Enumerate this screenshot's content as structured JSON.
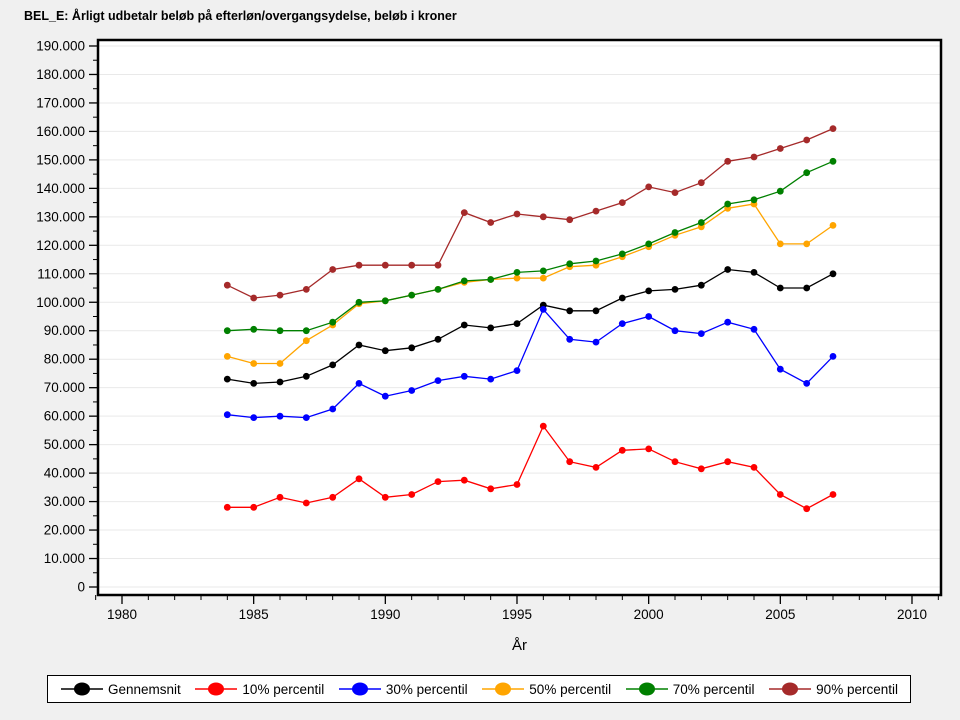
{
  "title": "BEL_E: Årligt udbetalr beløb på efterløn/overgangsydelse, beløb i kroner",
  "chart_data": {
    "type": "line",
    "x": [
      1984,
      1985,
      1986,
      1987,
      1988,
      1989,
      1990,
      1991,
      1992,
      1993,
      1994,
      1995,
      1996,
      1997,
      1998,
      1999,
      2000,
      2001,
      2002,
      2003,
      2004,
      2005,
      2006,
      2007
    ],
    "series": [
      {
        "name": "Gennemsnit",
        "color": "#000000",
        "values": [
          73000,
          71500,
          72000,
          74000,
          78000,
          85000,
          83000,
          84000,
          87000,
          92000,
          91000,
          92500,
          99000,
          97000,
          97000,
          101500,
          104000,
          104500,
          106000,
          111500,
          110500,
          105000,
          105000,
          110000
        ]
      },
      {
        "name": "10% percentil",
        "color": "#FF0000",
        "values": [
          28000,
          28000,
          31500,
          29500,
          31500,
          38000,
          31500,
          32500,
          37000,
          37500,
          34500,
          36000,
          56500,
          44000,
          42000,
          48000,
          48500,
          44000,
          41500,
          44000,
          42000,
          32500,
          27500,
          32500
        ]
      },
      {
        "name": "30% percentil",
        "color": "#0000FF",
        "values": [
          60500,
          59500,
          60000,
          59500,
          62500,
          71500,
          67000,
          69000,
          72500,
          74000,
          73000,
          76000,
          97500,
          87000,
          86000,
          92500,
          95000,
          90000,
          89000,
          93000,
          90500,
          76500,
          71500,
          81000
        ]
      },
      {
        "name": "50% percentil",
        "color": "#FFA500",
        "values": [
          81000,
          78500,
          78500,
          86500,
          92000,
          99500,
          100500,
          102500,
          104500,
          107000,
          108000,
          108500,
          108500,
          112500,
          113000,
          116000,
          119500,
          123500,
          126500,
          133000,
          134500,
          120500,
          120500,
          127000
        ]
      },
      {
        "name": "70% percentil",
        "color": "#008000",
        "values": [
          90000,
          90500,
          90000,
          90000,
          93000,
          100000,
          100500,
          102500,
          104500,
          107500,
          108000,
          110500,
          111000,
          113500,
          114500,
          117000,
          120500,
          124500,
          128000,
          134500,
          136000,
          139000,
          145500,
          149500
        ]
      },
      {
        "name": "90% percentil",
        "color": "#A52A2A",
        "values": [
          106000,
          101500,
          102500,
          104500,
          111500,
          113000,
          113000,
          113000,
          113000,
          131500,
          128000,
          131000,
          130000,
          129000,
          132000,
          135000,
          140500,
          138500,
          142000,
          149500,
          151000,
          154000,
          157000,
          161000
        ]
      }
    ],
    "xlabel": "År",
    "ylabel": "",
    "x_axis": {
      "ticks": [
        1980,
        1985,
        1990,
        1995,
        2000,
        2005,
        2010
      ],
      "minor_step": 1,
      "minor_range": [
        1979,
        2011
      ]
    },
    "y_axis": {
      "ticks": [
        0,
        10000,
        20000,
        30000,
        40000,
        50000,
        60000,
        70000,
        80000,
        90000,
        100000,
        110000,
        120000,
        130000,
        140000,
        150000,
        160000,
        170000,
        180000,
        190000
      ],
      "minor_step": 5000,
      "tick_format": "thousands-dot"
    },
    "xlim": [
      1979.1,
      2011.1
    ],
    "ylim": [
      0,
      195000
    ],
    "grid": "horizontal-major",
    "legend_position": "bottom",
    "background": "#F0F0F0",
    "plot_background": "#FFFFFF",
    "grid_color": "#E9E9E9"
  }
}
